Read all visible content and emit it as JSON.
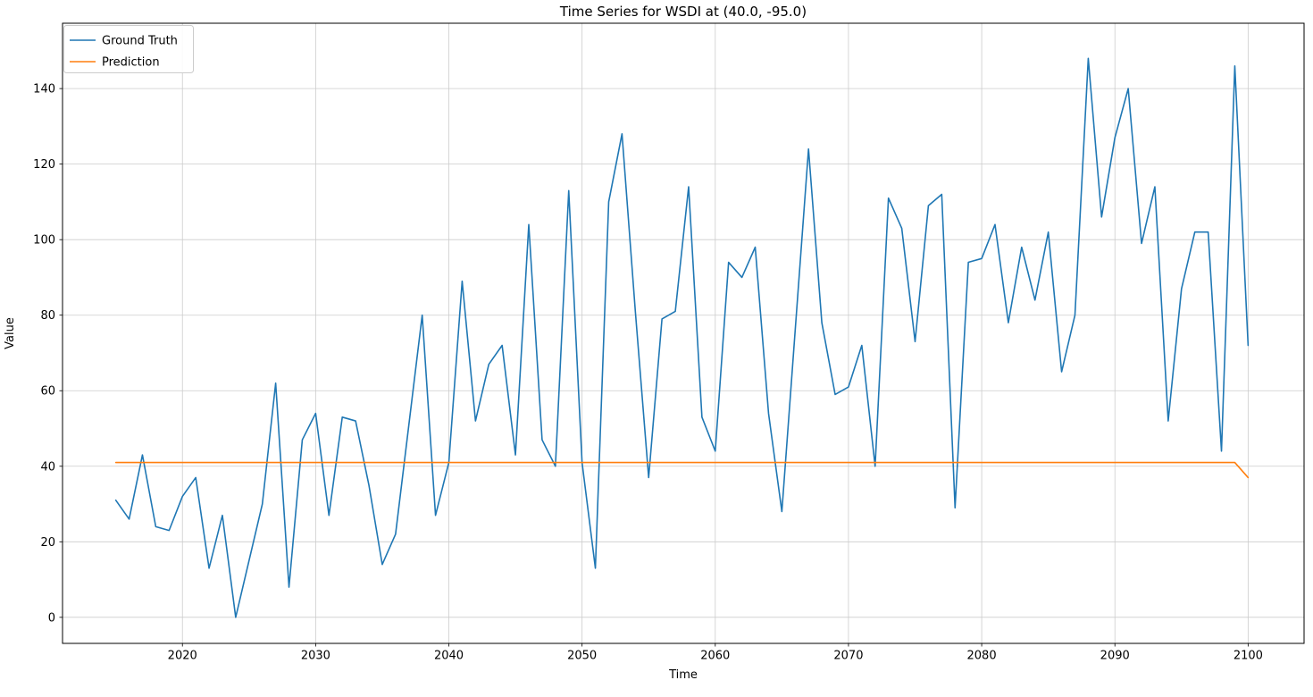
{
  "figure": {
    "title": "Time Series for WSDI at (40.0, -95.0)",
    "xlabel": "Time",
    "ylabel": "Value"
  },
  "legend": {
    "entries": [
      {
        "label": "Ground Truth",
        "color": "#1f77b4"
      },
      {
        "label": "Prediction",
        "color": "#ff7f0e"
      }
    ],
    "position": "upper left"
  },
  "chart_data": {
    "type": "line",
    "title": "Time Series for WSDI at (40.0, -95.0)",
    "xlabel": "Time",
    "ylabel": "Value",
    "grid": true,
    "legend_position": "upper left",
    "xlim": [
      2011.0,
      2104.2
    ],
    "ylim": [
      -6.9,
      157.3
    ],
    "xticks": [
      2020,
      2030,
      2040,
      2050,
      2060,
      2070,
      2080,
      2090,
      2100
    ],
    "yticks": [
      0,
      20,
      40,
      60,
      80,
      100,
      120,
      140
    ],
    "x": [
      2015,
      2016,
      2017,
      2018,
      2019,
      2020,
      2021,
      2022,
      2023,
      2024,
      2025,
      2026,
      2027,
      2028,
      2029,
      2030,
      2031,
      2032,
      2033,
      2034,
      2035,
      2036,
      2037,
      2038,
      2039,
      2040,
      2041,
      2042,
      2043,
      2044,
      2045,
      2046,
      2047,
      2048,
      2049,
      2050,
      2051,
      2052,
      2053,
      2054,
      2055,
      2056,
      2057,
      2058,
      2059,
      2060,
      2061,
      2062,
      2063,
      2064,
      2065,
      2066,
      2067,
      2068,
      2069,
      2070,
      2071,
      2072,
      2073,
      2074,
      2075,
      2076,
      2077,
      2078,
      2079,
      2080,
      2081,
      2082,
      2083,
      2084,
      2085,
      2086,
      2087,
      2088,
      2089,
      2090,
      2091,
      2092,
      2093,
      2094,
      2095,
      2096,
      2097,
      2098,
      2099,
      2100
    ],
    "series": [
      {
        "name": "Ground Truth",
        "color": "#1f77b4",
        "values": [
          31,
          26,
          43,
          24,
          23,
          32,
          37,
          13,
          27,
          0,
          15,
          30,
          62,
          8,
          47,
          54,
          27,
          53,
          52,
          35,
          14,
          22,
          51,
          80,
          27,
          41,
          89,
          52,
          67,
          72,
          43,
          104,
          47,
          40,
          113,
          41,
          13,
          110,
          128,
          81,
          37,
          79,
          81,
          114,
          53,
          44,
          94,
          90,
          98,
          54,
          28,
          76,
          124,
          78,
          59,
          61,
          72,
          40,
          111,
          103,
          73,
          109,
          112,
          29,
          94,
          95,
          104,
          78,
          98,
          84,
          102,
          65,
          80,
          148,
          106,
          127,
          140,
          99,
          114,
          52,
          87,
          102,
          102,
          44,
          146,
          72
        ]
      },
      {
        "name": "Prediction",
        "color": "#ff7f0e",
        "values": [
          41,
          41,
          41,
          41,
          41,
          41,
          41,
          41,
          41,
          41,
          41,
          41,
          41,
          41,
          41,
          41,
          41,
          41,
          41,
          41,
          41,
          41,
          41,
          41,
          41,
          41,
          41,
          41,
          41,
          41,
          41,
          41,
          41,
          41,
          41,
          41,
          41,
          41,
          41,
          41,
          41,
          41,
          41,
          41,
          41,
          41,
          41,
          41,
          41,
          41,
          41,
          41,
          41,
          41,
          41,
          41,
          41,
          41,
          41,
          41,
          41,
          41,
          41,
          41,
          41,
          41,
          41,
          41,
          41,
          41,
          41,
          41,
          41,
          41,
          41,
          41,
          41,
          41,
          41,
          41,
          41,
          41,
          41,
          41,
          41,
          37
        ]
      }
    ]
  }
}
